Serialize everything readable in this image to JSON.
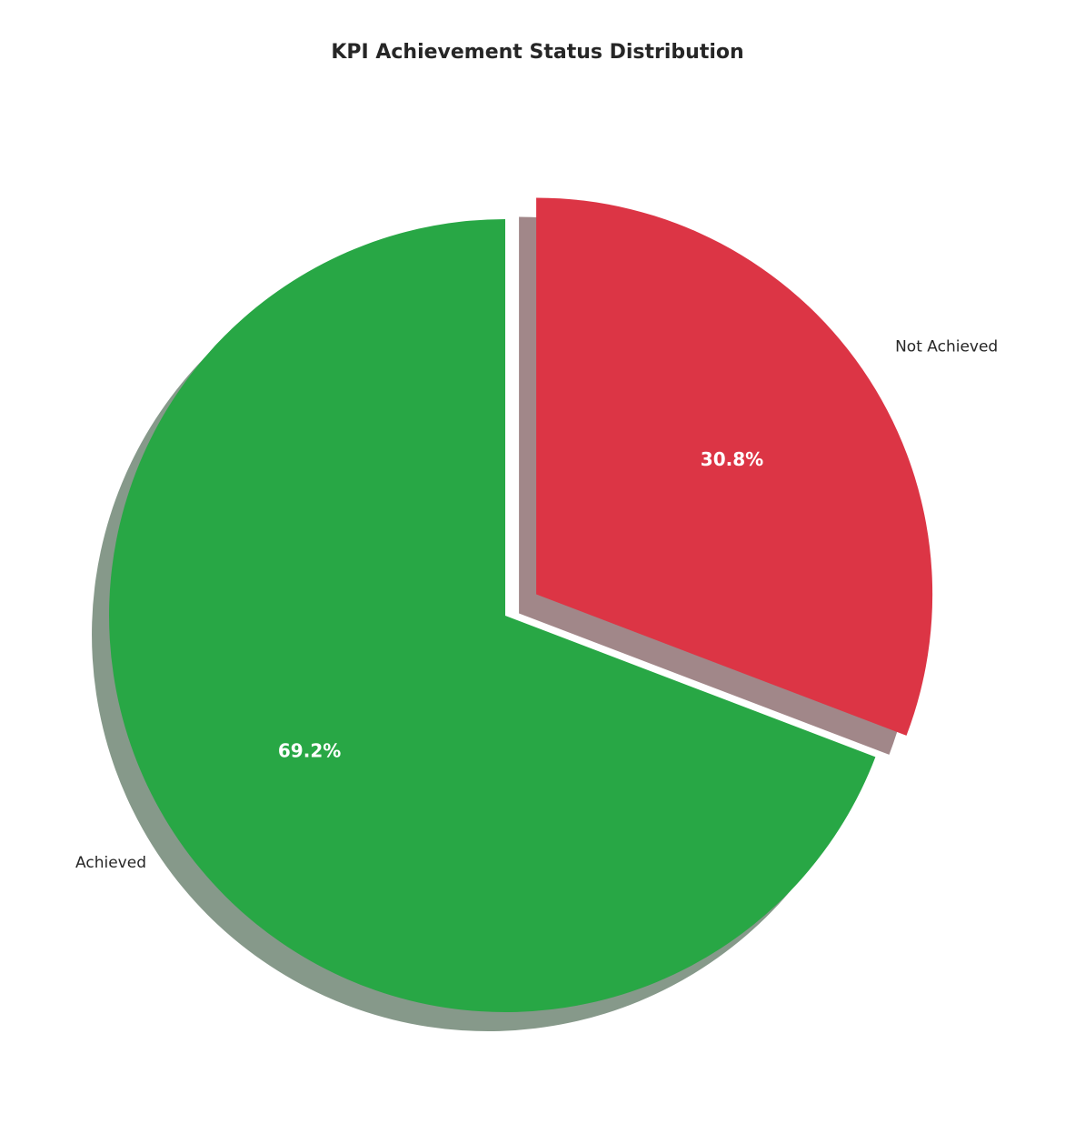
{
  "chart_data": {
    "type": "pie",
    "title": "KPI Achievement Status Distribution",
    "labels": [
      "Achieved",
      "Not Achieved"
    ],
    "values": [
      69.2,
      30.8
    ],
    "pct_labels": [
      "69.2%",
      "30.8%"
    ],
    "slice_colors": [
      "#28a745",
      "#dc3545"
    ],
    "shadow_colors": [
      "#86998a",
      "#a18789"
    ],
    "explode": [
      0,
      0.095
    ],
    "start_angle": 90,
    "counterclock": true,
    "shadow": true,
    "labeldistance": 1.1,
    "pctdistance": 0.6,
    "text_color": "#262626",
    "pct_text_color": "#ffffff",
    "legend": "none",
    "background": "#ffffff"
  }
}
